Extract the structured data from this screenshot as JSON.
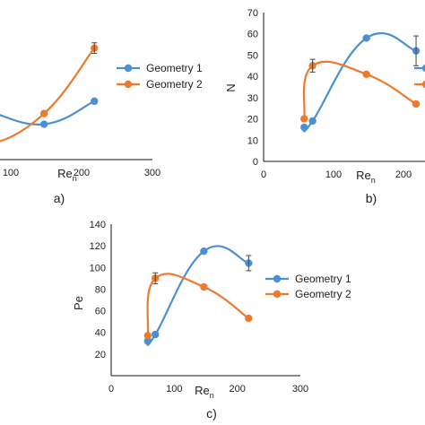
{
  "colors": {
    "geometry1": "#4a90d2",
    "geometry2": "#ec7b2e",
    "axis": "#111111"
  },
  "chart_data": [
    {
      "panel_label": "a)",
      "type": "line",
      "xlabel": "Re_n",
      "ylabel": "",
      "xlim": [
        0,
        300
      ],
      "x_ticks": [
        100,
        200,
        300
      ],
      "y_ticks": [],
      "legend": "right",
      "grid": false,
      "series": [
        {
          "name": "Geometry 1",
          "color": "#4a90d2",
          "x": [
            58,
            70,
            147,
            218
          ],
          "y": [
            0.52,
            0.52,
            0.45,
            0.58
          ]
        },
        {
          "name": "Geometry 2",
          "color": "#ec7b2e",
          "x": [
            58,
            70,
            147,
            218
          ],
          "y": [
            0.46,
            0.34,
            0.51,
            0.88
          ]
        }
      ]
    },
    {
      "panel_label": "b)",
      "type": "line",
      "xlabel": "Re_n",
      "ylabel": "N",
      "xlim": [
        0,
        300
      ],
      "ylim": [
        0,
        70
      ],
      "x_ticks": [
        0,
        100,
        200
      ],
      "y_ticks": [
        0,
        10,
        20,
        30,
        40,
        50,
        60,
        70
      ],
      "legend": "right",
      "grid": false,
      "series": [
        {
          "name": "Geometry 1",
          "color": "#4a90d2",
          "x": [
            58,
            70,
            147,
            218
          ],
          "y": [
            16,
            19,
            58,
            52
          ]
        },
        {
          "name": "Geometry 2",
          "color": "#ec7b2e",
          "x": [
            58,
            70,
            147,
            218
          ],
          "y": [
            20,
            45,
            41,
            27
          ]
        }
      ]
    },
    {
      "panel_label": "c)",
      "type": "line",
      "xlabel": "Re_n",
      "ylabel": "Pe",
      "xlim": [
        0,
        300
      ],
      "ylim": [
        0,
        140
      ],
      "x_ticks": [
        0,
        100,
        200,
        300
      ],
      "y_ticks": [
        20,
        40,
        60,
        80,
        100,
        120,
        140
      ],
      "legend": "right",
      "grid": false,
      "series": [
        {
          "name": "Geometry 1",
          "color": "#4a90d2",
          "x": [
            58,
            70,
            147,
            218
          ],
          "y": [
            32,
            38,
            115,
            104
          ]
        },
        {
          "name": "Geometry 2",
          "color": "#ec7b2e",
          "x": [
            58,
            70,
            147,
            218
          ],
          "y": [
            37,
            90,
            82,
            53
          ]
        }
      ]
    }
  ]
}
